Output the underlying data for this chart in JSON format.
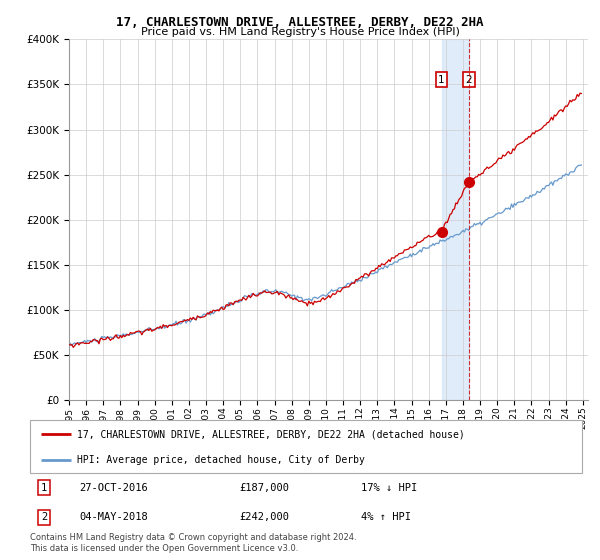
{
  "title": "17, CHARLESTOWN DRIVE, ALLESTREE, DERBY, DE22 2HA",
  "subtitle": "Price paid vs. HM Land Registry's House Price Index (HPI)",
  "legend_label_red": "17, CHARLESTOWN DRIVE, ALLESTREE, DERBY, DE22 2HA (detached house)",
  "legend_label_blue": "HPI: Average price, detached house, City of Derby",
  "transaction1_date": "27-OCT-2016",
  "transaction1_price": "£187,000",
  "transaction1_hpi": "17% ↓ HPI",
  "transaction2_date": "04-MAY-2018",
  "transaction2_price": "£242,000",
  "transaction2_hpi": "4% ↑ HPI",
  "footer": "Contains HM Land Registry data © Crown copyright and database right 2024.\nThis data is licensed under the Open Government Licence v3.0.",
  "ylim": [
    0,
    400000
  ],
  "red_color": "#cc0000",
  "blue_color": "#6699cc",
  "blue_fill_color": "#cce0f5",
  "vline_color": "#cc0000",
  "background_color": "#ffffff",
  "grid_color": "#cccccc",
  "t1": 2016.75,
  "t2": 2018.33,
  "p1": 187000,
  "p2": 242000
}
